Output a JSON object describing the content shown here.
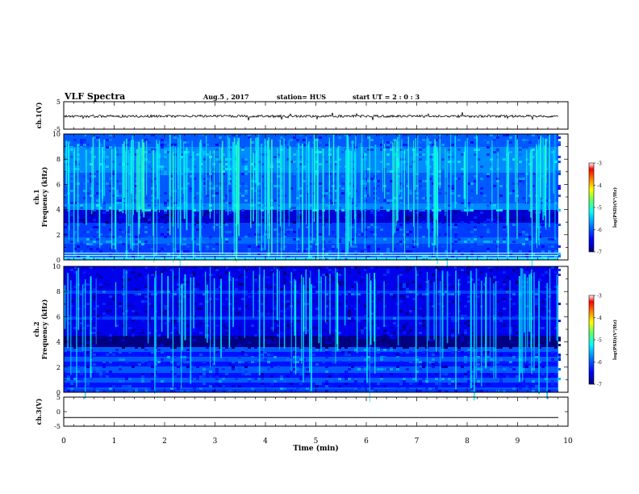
{
  "header": {
    "title": "VLF Spectra",
    "date": "Aug.5 , 2017",
    "station": "station= HUS",
    "start": "start UT = 2 : 0 : 3"
  },
  "chart_data": [
    {
      "type": "line",
      "panel": "ch1-waveform",
      "ylabel": "ch.1(V)",
      "ylim": [
        -5,
        5
      ],
      "yticks": [
        "5",
        "-5"
      ],
      "xlim": [
        0,
        10
      ],
      "series": [
        {
          "values_description_level": 0.0
        }
      ]
    },
    {
      "type": "heatmap",
      "panel": "ch1-spectrogram",
      "ylabel": "ch.1 Frequency (kHz)",
      "ylim": [
        0,
        10
      ],
      "yticks": [
        "0",
        "2",
        "4",
        "6",
        "8",
        "10"
      ],
      "xlim": [
        0,
        9.85
      ],
      "colorbar": {
        "label": "log(PSD)(V²/Hz)",
        "range": [
          -7,
          -3
        ],
        "ticks": [
          "-3",
          "-4",
          "-5",
          "-6",
          "-7"
        ]
      }
    },
    {
      "type": "heatmap",
      "panel": "ch2-spectrogram",
      "ylabel": "ch.2 Frequency (kHz)",
      "ylim": [
        0,
        10
      ],
      "yticks": [
        "0",
        "2",
        "4",
        "6",
        "8",
        "10"
      ],
      "xlim": [
        0,
        9.85
      ],
      "colorbar": {
        "label": "log(PSD)(V²/Hz)",
        "range": [
          -7,
          -3
        ],
        "ticks": [
          "-3",
          "-4",
          "-5",
          "-6",
          "-7"
        ]
      }
    },
    {
      "type": "line",
      "panel": "ch3-waveform",
      "ylabel": "ch.3(V)",
      "ylim": [
        -5,
        5
      ],
      "yticks": [
        "5",
        "0",
        "-5"
      ],
      "xlim": [
        0,
        10
      ],
      "series": [
        {
          "level": -2
        }
      ]
    }
  ],
  "xaxis": {
    "label": "Time (min)",
    "range": [
      0,
      10
    ],
    "ticks": [
      "0",
      "1",
      "2",
      "3",
      "4",
      "5",
      "6",
      "7",
      "8",
      "9",
      "10"
    ]
  },
  "colors": {
    "colormap": [
      "#00007f",
      "#0000ff",
      "#007fff",
      "#00ffff",
      "#7fff7f",
      "#ffff00",
      "#ff7f00",
      "#ff0000",
      "#ffffff"
    ]
  }
}
